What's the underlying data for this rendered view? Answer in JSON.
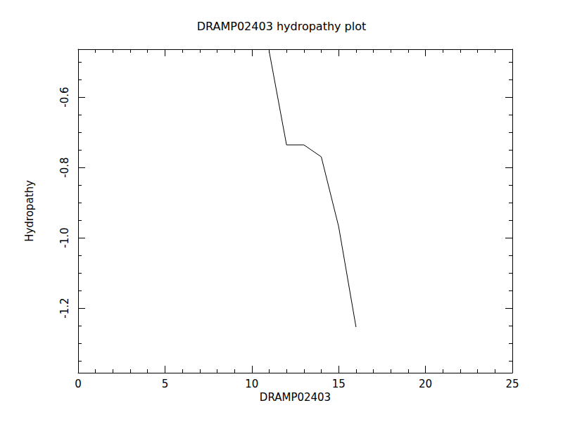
{
  "chart_data": {
    "type": "line",
    "title": "DRAMP02403 hydropathy plot",
    "x_label": "DRAMP02403",
    "y_label": "Hydropathy",
    "x": [
      11,
      12,
      13,
      14,
      15,
      16
    ],
    "values": [
      -0.47,
      -0.736,
      -0.736,
      -0.77,
      -0.968,
      -1.254
    ],
    "color": "#000000",
    "xlim": [
      0,
      25
    ],
    "xticks": [
      0,
      5,
      10,
      15,
      20,
      25
    ],
    "ylim": [
      -1.384,
      -0.464
    ],
    "yticks": [
      -1.2,
      {
        "value": -1,
        "label": "-1.0"
      },
      -0.8,
      -0.6
    ],
    "grid": false
  }
}
